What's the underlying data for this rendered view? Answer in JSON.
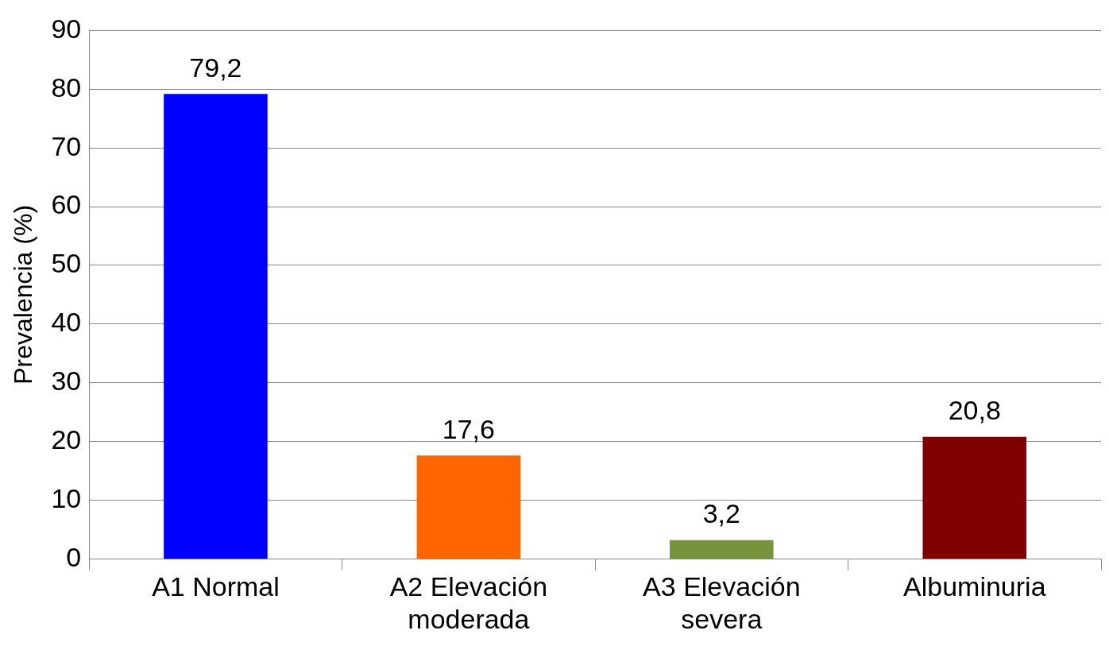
{
  "chart_data": {
    "type": "bar",
    "ylabel": "Prevalencia (%)",
    "categories": [
      "A1 Normal",
      "A2 Elevación moderada",
      "A3 Elevación severa",
      "Albuminuria"
    ],
    "values": [
      79.2,
      17.6,
      3.2,
      20.8
    ],
    "colors": [
      "#0000ff",
      "#ff6600",
      "#77933c",
      "#800000"
    ],
    "value_labels": [
      "79,2",
      "17,6",
      "3,2",
      "20,8"
    ],
    "ylim": [
      0,
      90
    ],
    "yticks": [
      0,
      10,
      20,
      30,
      40,
      50,
      60,
      70,
      80,
      90
    ],
    "grid": "y",
    "legend": false
  }
}
